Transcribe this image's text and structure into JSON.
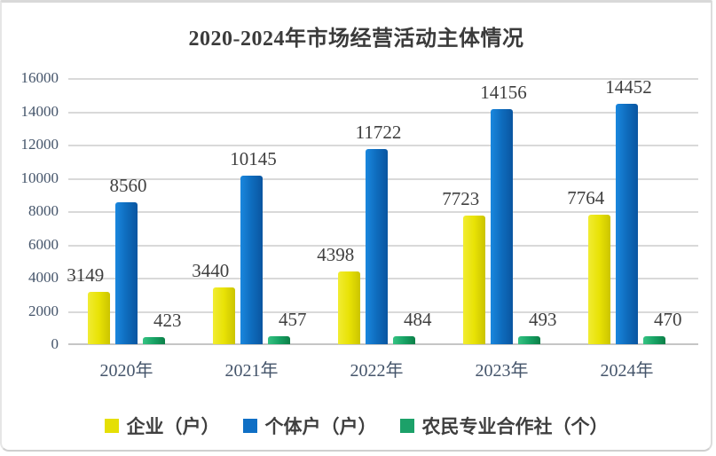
{
  "chart_data": {
    "type": "bar",
    "title": "2020-2024年市场经营活动主体情况",
    "categories": [
      "2020年",
      "2021年",
      "2022年",
      "2023年",
      "2024年"
    ],
    "series": [
      {
        "name": "企业（户）",
        "values": [
          3149,
          3440,
          4398,
          7723,
          7764
        ],
        "color": "#e5df05",
        "gradient": [
          "#f1ec33",
          "#e8e205",
          "#cbc400"
        ]
      },
      {
        "name": "个体户（户）",
        "values": [
          8560,
          10145,
          11722,
          14156,
          14452
        ],
        "color": "#0f6fc5",
        "gradient": [
          "#1a87de",
          "#0e6cbd",
          "#0a55a0"
        ]
      },
      {
        "name": "农民专业合作社（个）",
        "values": [
          423,
          457,
          484,
          493,
          470
        ],
        "color": "#1ca169",
        "gradient": [
          "#36c383",
          "#18a365",
          "#0c7f47"
        ]
      }
    ],
    "ylim": [
      0,
      16000
    ],
    "y_ticks": [
      "0",
      "2000",
      "4000",
      "6000",
      "8000",
      "10000",
      "12000",
      "14000",
      "16000"
    ],
    "grid": true,
    "data_labels": true,
    "legend_position": "bottom",
    "grid_color": "#d9d9d9",
    "axis_label_color": "#44546a",
    "data_label_color": "#3f3f3f"
  }
}
